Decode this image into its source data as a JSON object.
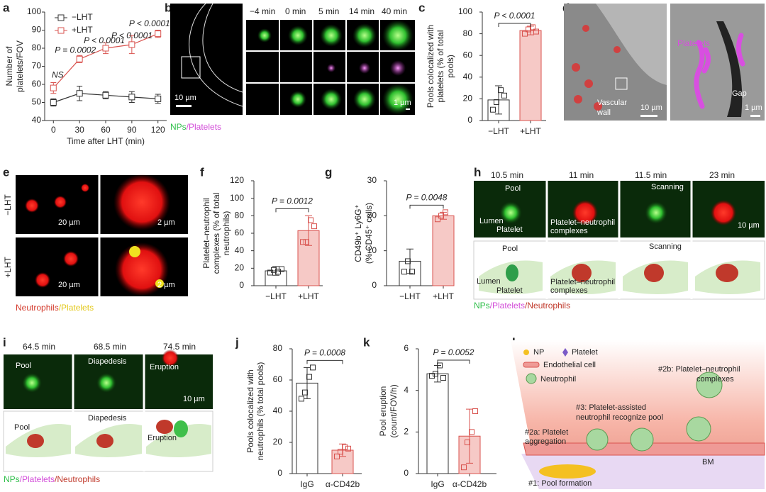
{
  "chart_data": [
    {
      "type": "line",
      "panel": "a",
      "ylabel": [
        "Number of",
        "platelets/FOV"
      ],
      "xlabel": "Time after LHT (min)",
      "x": [
        0,
        30,
        60,
        90,
        120
      ],
      "xlim": [
        -10,
        130
      ],
      "xticks": [
        0,
        30,
        60,
        90,
        120
      ],
      "ylim": [
        40,
        100
      ],
      "yticks": [
        40,
        50,
        60,
        70,
        80,
        90,
        100
      ],
      "legend": "upper left",
      "series": [
        {
          "name": "−LHT",
          "color": "#333333",
          "values": [
            50,
            55,
            54,
            53,
            52
          ],
          "errors": [
            2,
            4,
            2,
            3,
            2.5
          ]
        },
        {
          "name": "+LHT",
          "color": "#d9534f",
          "values": [
            58,
            74,
            80,
            82,
            88
          ],
          "errors": [
            3,
            2,
            3,
            5,
            2
          ]
        }
      ],
      "annotations": [
        "NS",
        "P = 0.0002",
        "P < 0.0001",
        "P < 0.0001",
        "P < 0.0001"
      ]
    },
    {
      "type": "bar",
      "panel": "c",
      "ylabel": [
        "Pools colocalized with",
        "platelets (% of total",
        "pools)"
      ],
      "categories": [
        "−LHT",
        "+LHT"
      ],
      "values": [
        19,
        83
      ],
      "errors": [
        13,
        4
      ],
      "points": [
        [
          10,
          17,
          28,
          23
        ],
        [
          80,
          84,
          86,
          82
        ]
      ],
      "colors": [
        "#ffffff",
        "#f6c9c6"
      ],
      "edge_colors": [
        "#333333",
        "#d9534f"
      ],
      "ylim": [
        0,
        100
      ],
      "yticks": [
        0,
        20,
        40,
        60,
        80,
        100
      ],
      "annotation": "P < 0.0001"
    },
    {
      "type": "bar",
      "panel": "f",
      "ylabel": [
        "Platelet–neutrophil",
        "complexes (% of total",
        "neutrophils)"
      ],
      "categories": [
        "−LHT",
        "+LHT"
      ],
      "values": [
        17,
        63
      ],
      "errors": [
        5,
        17
      ],
      "points": [
        [
          15,
          18,
          16,
          19
        ],
        [
          50,
          50,
          75,
          68
        ]
      ],
      "colors": [
        "#ffffff",
        "#f6c9c6"
      ],
      "edge_colors": [
        "#333333",
        "#d9534f"
      ],
      "ylim": [
        0,
        120
      ],
      "yticks": [
        0,
        20,
        40,
        60,
        80,
        100,
        120
      ],
      "annotation": "P = 0.0012"
    },
    {
      "type": "bar",
      "panel": "g",
      "ylabel": [
        "CD49b⁺ Ly6G⁺",
        "(% CD45⁺ cells)"
      ],
      "categories": [
        "−LHT",
        "+LHT"
      ],
      "values": [
        7,
        20
      ],
      "errors": [
        3.5,
        1
      ],
      "points": [
        [
          4,
          7,
          4
        ],
        [
          19,
          20,
          21
        ]
      ],
      "colors": [
        "#ffffff",
        "#f6c9c6"
      ],
      "edge_colors": [
        "#333333",
        "#d9534f"
      ],
      "ylim": [
        0,
        30
      ],
      "yticks": [
        0,
        10,
        20,
        30
      ],
      "annotation": "P = 0.0048"
    },
    {
      "type": "bar",
      "panel": "j",
      "ylabel": [
        "Pools colocalized with",
        "neutrophils (% total pools)"
      ],
      "categories": [
        "IgG",
        "α-CD42b"
      ],
      "values": [
        58,
        15
      ],
      "errors": [
        10,
        4
      ],
      "points": [
        [
          48,
          52,
          62,
          68
        ],
        [
          11,
          14,
          17,
          16
        ]
      ],
      "colors": [
        "#ffffff",
        "#f6c9c6"
      ],
      "edge_colors": [
        "#333333",
        "#d9534f"
      ],
      "ylim": [
        0,
        80
      ],
      "yticks": [
        0,
        20,
        40,
        60,
        80
      ],
      "annotation": "P = 0.0008"
    },
    {
      "type": "bar",
      "panel": "k",
      "ylabel": [
        "Pool eruption",
        "(count/FOV/h)"
      ],
      "categories": [
        "IgG",
        "α-CD42b"
      ],
      "values": [
        4.8,
        1.8
      ],
      "errors": [
        0.4,
        1.3
      ],
      "points": [
        [
          4.7,
          4.8,
          5.2,
          4.6
        ],
        [
          0.3,
          1.5,
          2,
          3
        ]
      ],
      "colors": [
        "#ffffff",
        "#f6c9c6"
      ],
      "edge_colors": [
        "#333333",
        "#d9534f"
      ],
      "ylim": [
        0,
        6
      ],
      "yticks": [
        0,
        2,
        4,
        6
      ],
      "annotation": "P = 0.0052"
    }
  ],
  "panels": {
    "b": {
      "letter": "b",
      "times": [
        "−4 min",
        "0 min",
        "5 min",
        "14 min",
        "40 min"
      ],
      "scale_big": "10 µm",
      "scale_small": "1 µm",
      "caption": [
        {
          "text": "NPs",
          "color": "#2fbf4a"
        },
        {
          "text": "/Platelets",
          "color": "#d24bd8"
        }
      ]
    },
    "d": {
      "letter": "d",
      "wall": [
        "Vascular",
        "wall"
      ],
      "scale_left": "10 µm",
      "platelets": "Platelets",
      "gap": "Gap",
      "scale_right": "1 µm"
    },
    "e": {
      "letter": "e",
      "rows": [
        "−LHT",
        "+LHT"
      ],
      "scale_big": "20 µm",
      "scale_small": "2 µm",
      "caption": [
        {
          "text": "Neutrophils",
          "color": "#d33a2c"
        },
        {
          "text": "/Platelets",
          "color": "#e3c81a"
        }
      ]
    },
    "h": {
      "letter": "h",
      "times": [
        "10.5 min",
        "11 min",
        "11.5 min",
        "23 min"
      ],
      "pool": "Pool",
      "lumen": "Lumen",
      "platelet": "Platelet",
      "complexes": [
        "Platelet–neutrophil",
        "complexes"
      ],
      "scanning": "Scanning",
      "scale": "10 µm",
      "caption": [
        {
          "text": "NPs",
          "color": "#2fbf4a"
        },
        {
          "text": "/Platelets",
          "color": "#d24bd8"
        },
        {
          "text": "/Neutrophils",
          "color": "#c0392b"
        }
      ]
    },
    "i": {
      "letter": "i",
      "times": [
        "64.5 min",
        "68.5 min",
        "74.5 min"
      ],
      "pool": "Pool",
      "diapedesis": "Diapedesis",
      "eruption": "Eruption",
      "scale": "10 µm",
      "caption": [
        {
          "text": "NPs",
          "color": "#2fbf4a"
        },
        {
          "text": "/Platelets",
          "color": "#d24bd8"
        },
        {
          "text": "/Neutrophils",
          "color": "#c0392b"
        }
      ]
    },
    "l": {
      "letter": "l",
      "np": "NP",
      "platelet": "Platelet",
      "endothelial": "Endothelial cell",
      "neutrophil": "Neutrophil",
      "step2b": [
        "#2b: Platelet–neutrophil",
        "complexes"
      ],
      "step3": [
        "#3: Platelet-assisted",
        "neutrophil recognize pool"
      ],
      "step2a": [
        "#2a: Platelet",
        "aggregation"
      ],
      "bm": "BM",
      "step1": "#1: Pool formation"
    }
  }
}
